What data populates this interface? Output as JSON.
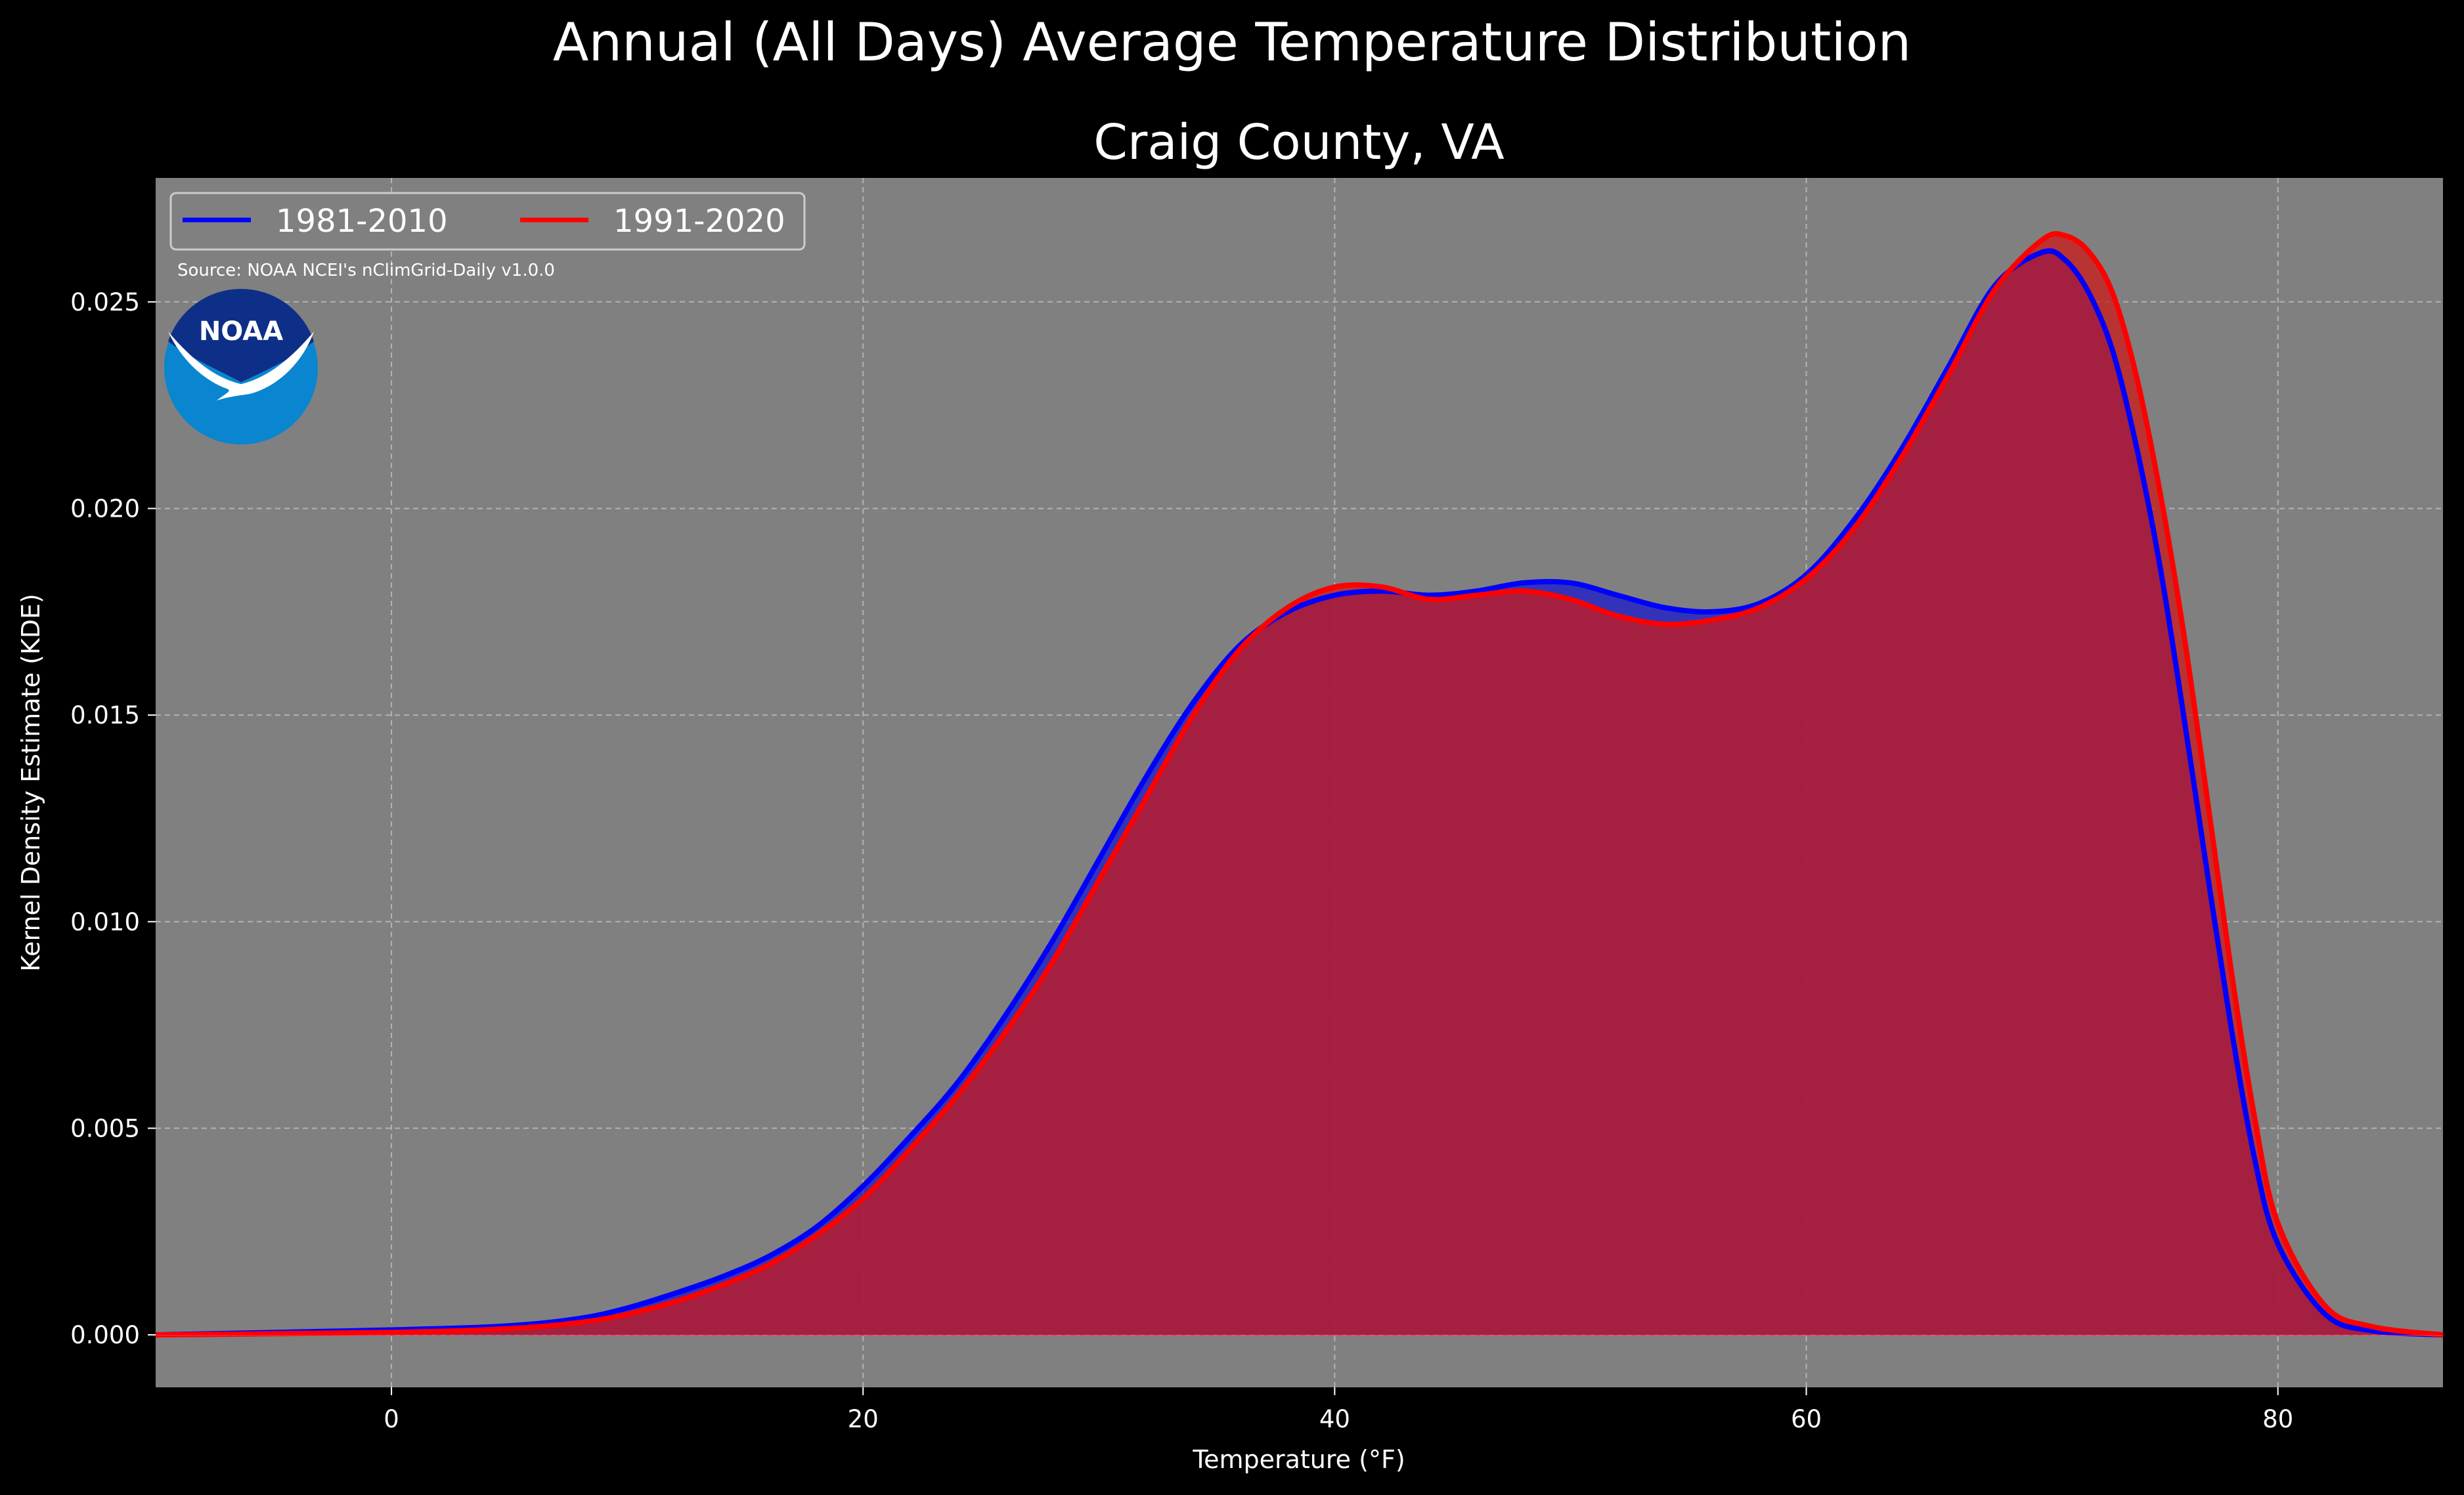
{
  "chart_data": {
    "type": "area",
    "suptitle": "Annual (All Days) Average Temperature Distribution",
    "title": "Craig County, VA",
    "xlabel": "Temperature (°F)",
    "ylabel": "Kernel Density Estimate (KDE)",
    "xlim": [
      -10,
      87
    ],
    "ylim": [
      -0.00127,
      0.028
    ],
    "xticks": [
      0,
      20,
      40,
      60,
      80
    ],
    "yticks": [
      0.0,
      0.005,
      0.01,
      0.015,
      0.02,
      0.025
    ],
    "xtick_labels": [
      "0",
      "20",
      "40",
      "60",
      "80"
    ],
    "ytick_labels": [
      "0.000",
      "0.005",
      "0.010",
      "0.015",
      "0.020",
      "0.025"
    ],
    "grid": true,
    "legend_position": "top-left",
    "source_note": "Source: NOAA NCEI's nClimGrid-Daily v1.0.0",
    "logo_text": "NOAA",
    "background_color": "#808080",
    "figure_color": "#000000",
    "series": [
      {
        "name": "1981-2010",
        "color": "#0000ff",
        "fill": "#1a1acc",
        "x": [
          -10,
          0,
          5,
          8,
          10,
          12,
          14,
          16,
          18,
          20,
          22,
          24,
          26,
          28,
          30,
          32,
          34,
          36,
          38,
          40,
          42,
          44,
          46,
          48,
          50,
          52,
          54,
          56,
          58,
          60,
          62,
          64,
          66,
          68,
          70,
          71,
          72,
          73,
          74,
          75,
          76,
          77,
          78,
          79,
          80,
          82,
          84,
          87
        ],
        "y": [
          0.0,
          0.00012,
          0.00022,
          0.0004,
          0.00065,
          0.001,
          0.0014,
          0.0019,
          0.0026,
          0.0036,
          0.0048,
          0.0061,
          0.0077,
          0.0095,
          0.0115,
          0.0135,
          0.0153,
          0.0167,
          0.0175,
          0.0179,
          0.018,
          0.0179,
          0.018,
          0.0182,
          0.0182,
          0.0179,
          0.0176,
          0.0175,
          0.0177,
          0.0184,
          0.0197,
          0.0214,
          0.0234,
          0.0254,
          0.0262,
          0.026,
          0.0252,
          0.0238,
          0.0215,
          0.0186,
          0.015,
          0.0112,
          0.0075,
          0.0043,
          0.0022,
          0.0005,
          0.0001,
          0.0
        ]
      },
      {
        "name": "1991-2020",
        "color": "#ff0000",
        "fill": "#cc1a1a",
        "x": [
          -10,
          0,
          5,
          8,
          10,
          12,
          14,
          16,
          18,
          20,
          22,
          24,
          26,
          28,
          30,
          32,
          34,
          36,
          38,
          40,
          42,
          44,
          46,
          48,
          50,
          52,
          54,
          56,
          58,
          60,
          62,
          64,
          66,
          68,
          70,
          71,
          72,
          73,
          74,
          75,
          76,
          77,
          78,
          79,
          80,
          82,
          84,
          87
        ],
        "y": [
          0.0,
          6e-05,
          0.00015,
          0.0003,
          0.0005,
          0.0008,
          0.0012,
          0.0017,
          0.0024,
          0.0033,
          0.0045,
          0.0058,
          0.0073,
          0.009,
          0.011,
          0.013,
          0.015,
          0.0166,
          0.0176,
          0.0181,
          0.0181,
          0.0178,
          0.0179,
          0.018,
          0.0178,
          0.0174,
          0.0172,
          0.0173,
          0.0176,
          0.0183,
          0.0195,
          0.0212,
          0.0232,
          0.0253,
          0.0265,
          0.0266,
          0.0262,
          0.0252,
          0.0232,
          0.0204,
          0.017,
          0.013,
          0.0089,
          0.0053,
          0.0027,
          0.0007,
          0.0002,
          0.0
        ]
      }
    ]
  }
}
